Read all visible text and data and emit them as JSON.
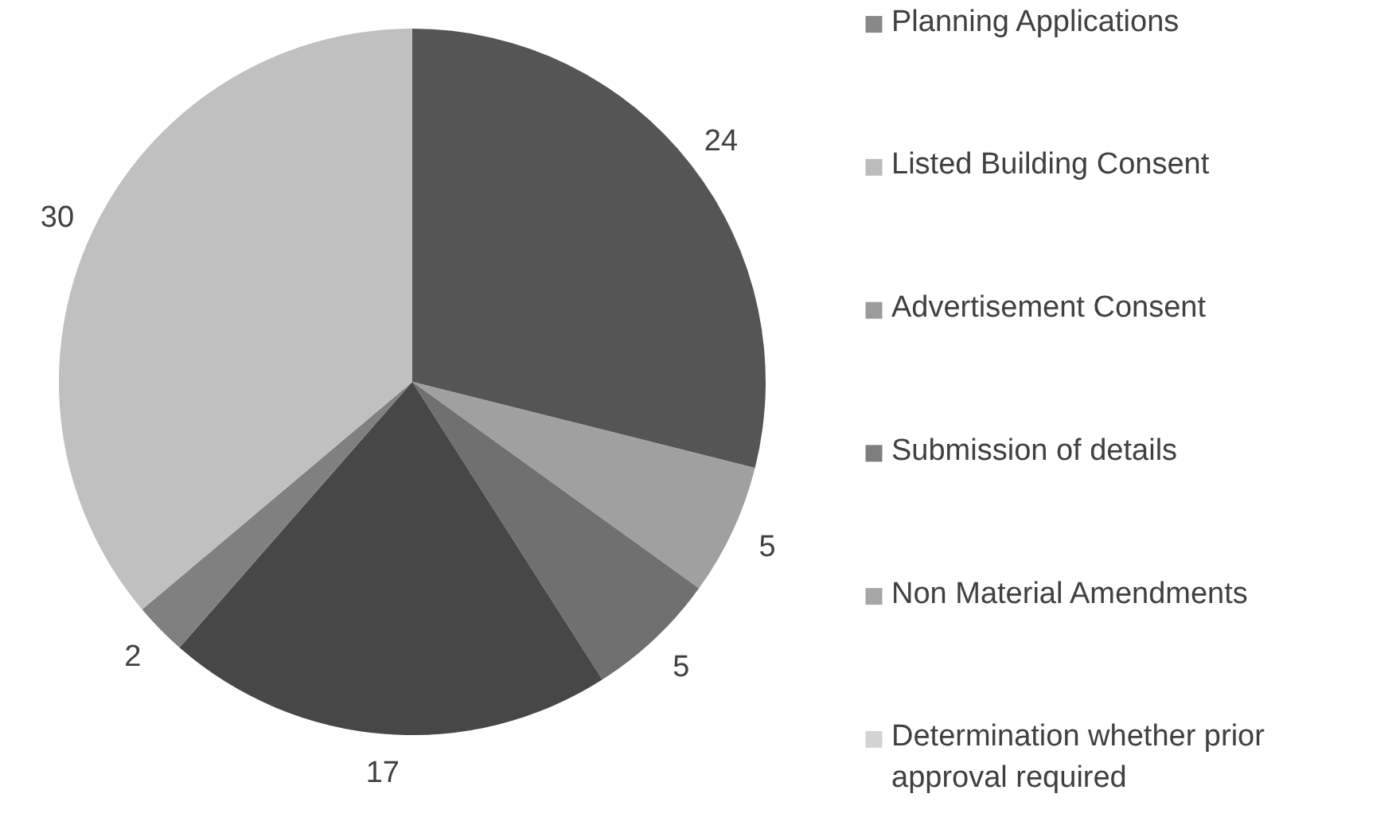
{
  "chart_data": {
    "type": "pie",
    "categories": [
      "Planning Applications",
      "Listed Building Consent",
      "Advertisement Consent",
      "Submission of details",
      "Non Material Amendments",
      "Determination whether prior approval required"
    ],
    "values": [
      24,
      5,
      5,
      17,
      2,
      30
    ],
    "colors": [
      "#555555",
      "#a0a0a0",
      "#707070",
      "#474747",
      "#808080",
      "#c0c0c0"
    ],
    "data_labels": true,
    "legend": "right"
  }
}
